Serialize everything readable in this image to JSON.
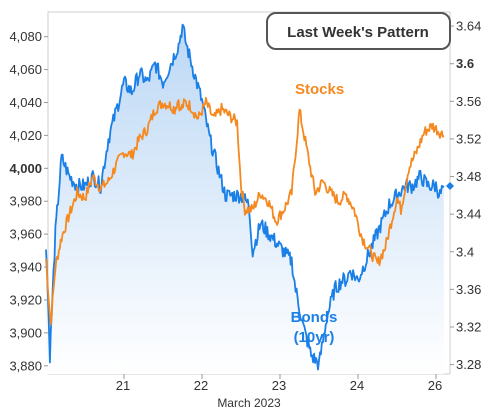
{
  "chart_data": {
    "type": "line",
    "title": "Last Week's Pattern",
    "xlabel": "March 2023",
    "x_ticks": [
      "21",
      "22",
      "23",
      "24",
      "26"
    ],
    "y_left_ticks": [
      "4,080",
      "4,060",
      "4,040",
      "4,020",
      "4,000",
      "3,980",
      "3,960",
      "3,940",
      "3,920",
      "3,900",
      "3,880"
    ],
    "y_left_ylim": [
      3875,
      4095
    ],
    "y_right_ticks": [
      "3.64",
      "3.6",
      "3.56",
      "3.52",
      "3.48",
      "3.44",
      "3.4",
      "3.36",
      "3.32",
      "3.28"
    ],
    "y_right_ylim": [
      3.27,
      3.655
    ],
    "series": [
      {
        "name": "Stocks",
        "axis": "left",
        "color": "#f5891f",
        "x": [
          0.0,
          0.06,
          0.12,
          0.2,
          0.3,
          0.4,
          0.5,
          0.6,
          0.7,
          0.8,
          0.9,
          1.0,
          1.1,
          1.2,
          1.3,
          1.4,
          1.5,
          1.6,
          1.65,
          1.7,
          1.72,
          1.78,
          1.85,
          1.95,
          2.05,
          2.15,
          2.25,
          2.35,
          2.45,
          2.5,
          2.55,
          2.65,
          2.75,
          2.85,
          2.95,
          3.05,
          3.15,
          3.2,
          3.25,
          3.35,
          3.45,
          3.55,
          3.65,
          3.75,
          3.8,
          3.85,
          3.95,
          4.05,
          4.15,
          4.25,
          4.35,
          4.45,
          4.5,
          4.55,
          4.65,
          4.75,
          4.85,
          4.95,
          5.05,
          5.1
        ],
        "y": [
          3945,
          3905,
          3940,
          3958,
          3972,
          3985,
          3982,
          3995,
          3988,
          3992,
          4002,
          4010,
          4008,
          4018,
          4024,
          4036,
          4040,
          4038,
          4036,
          4042,
          4035,
          4040,
          4038,
          4030,
          4040,
          4030,
          4036,
          4032,
          4028,
          3990,
          3975,
          3975,
          3985,
          3980,
          3968,
          3975,
          3985,
          4010,
          4035,
          4010,
          3985,
          3992,
          3985,
          3980,
          3982,
          3984,
          3975,
          3958,
          3950,
          3942,
          3952,
          3972,
          3982,
          3975,
          4000,
          4010,
          4022,
          4026,
          4022,
          4020
        ]
      },
      {
        "name": "Bonds (10yr)",
        "axis": "right",
        "color": "#1a7fe6",
        "x": [
          0.0,
          0.05,
          0.12,
          0.2,
          0.3,
          0.4,
          0.5,
          0.6,
          0.7,
          0.8,
          0.9,
          1.0,
          1.1,
          1.2,
          1.3,
          1.4,
          1.5,
          1.6,
          1.7,
          1.75,
          1.8,
          1.9,
          2.0,
          2.1,
          2.2,
          2.3,
          2.4,
          2.5,
          2.6,
          2.65,
          2.75,
          2.85,
          2.95,
          3.05,
          3.15,
          3.2,
          3.3,
          3.4,
          3.5,
          3.6,
          3.7,
          3.8,
          3.85,
          3.9,
          4.0,
          4.1,
          4.2,
          4.3,
          4.4,
          4.5,
          4.6,
          4.7,
          4.8,
          4.9,
          5.0,
          5.05,
          5.1
        ],
        "y": [
          3.41,
          3.29,
          3.42,
          3.5,
          3.48,
          3.47,
          3.47,
          3.48,
          3.47,
          3.52,
          3.55,
          3.58,
          3.57,
          3.59,
          3.58,
          3.6,
          3.58,
          3.6,
          3.62,
          3.64,
          3.62,
          3.59,
          3.56,
          3.52,
          3.49,
          3.46,
          3.46,
          3.46,
          3.45,
          3.4,
          3.43,
          3.42,
          3.41,
          3.4,
          3.39,
          3.36,
          3.32,
          3.29,
          3.28,
          3.33,
          3.36,
          3.37,
          3.37,
          3.38,
          3.37,
          3.39,
          3.41,
          3.43,
          3.45,
          3.46,
          3.47,
          3.47,
          3.48,
          3.47,
          3.47,
          3.46,
          3.47
        ]
      }
    ],
    "grid": false
  },
  "colors": {
    "stocks": "#f5891f",
    "bonds": "#1a7fe6",
    "fill_top": "#bcd8f5",
    "fill_bottom": "#ffffff"
  }
}
